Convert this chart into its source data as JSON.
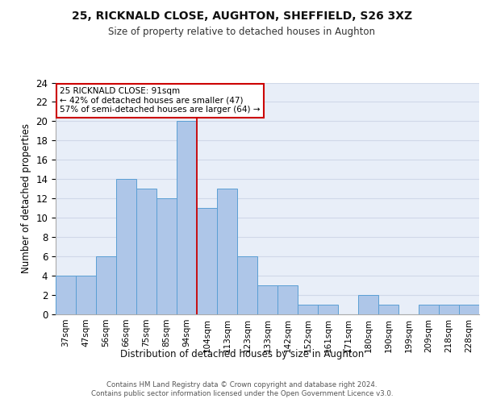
{
  "title1": "25, RICKNALD CLOSE, AUGHTON, SHEFFIELD, S26 3XZ",
  "title2": "Size of property relative to detached houses in Aughton",
  "xlabel": "Distribution of detached houses by size in Aughton",
  "ylabel": "Number of detached properties",
  "categories": [
    "37sqm",
    "47sqm",
    "56sqm",
    "66sqm",
    "75sqm",
    "85sqm",
    "94sqm",
    "104sqm",
    "113sqm",
    "123sqm",
    "133sqm",
    "142sqm",
    "152sqm",
    "161sqm",
    "171sqm",
    "180sqm",
    "190sqm",
    "199sqm",
    "209sqm",
    "218sqm",
    "228sqm"
  ],
  "values": [
    4,
    4,
    6,
    14,
    13,
    12,
    20,
    11,
    13,
    6,
    3,
    3,
    1,
    1,
    0,
    2,
    1,
    0,
    1,
    1,
    1
  ],
  "bar_color": "#aec6e8",
  "bar_edge_color": "#5a9fd4",
  "grid_color": "#d0d8e8",
  "background_color": "#e8eef8",
  "annotation_box_color": "#ffffff",
  "annotation_border_color": "#cc0000",
  "annotation_text": "25 RICKNALD CLOSE: 91sqm\n← 42% of detached houses are smaller (47)\n57% of semi-detached houses are larger (64) →",
  "vline_x": 6.5,
  "vline_color": "#cc0000",
  "ylim": [
    0,
    24
  ],
  "yticks": [
    0,
    2,
    4,
    6,
    8,
    10,
    12,
    14,
    16,
    18,
    20,
    22,
    24
  ],
  "footer1": "Contains HM Land Registry data © Crown copyright and database right 2024.",
  "footer2": "Contains public sector information licensed under the Open Government Licence v3.0."
}
